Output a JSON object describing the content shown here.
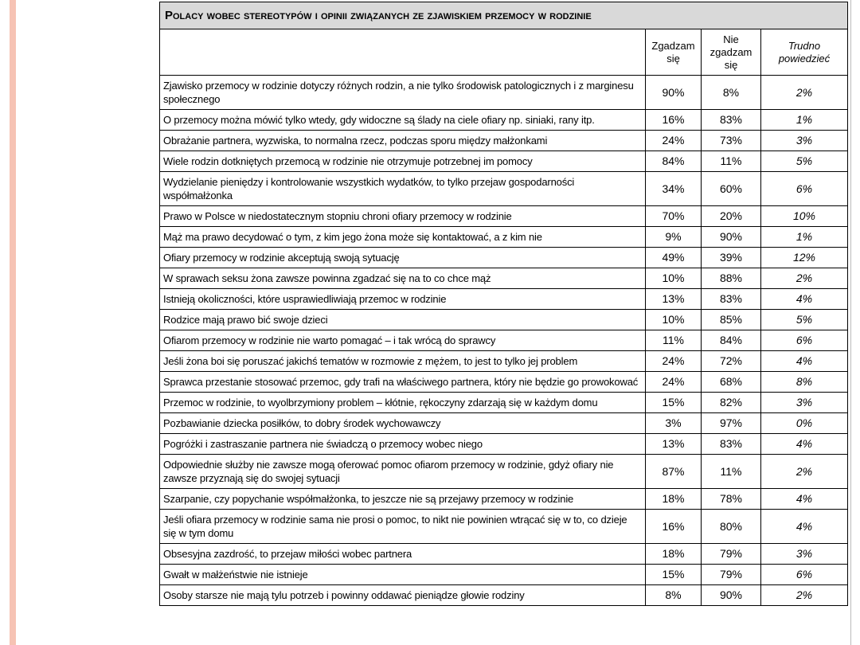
{
  "table": {
    "title": "Polacy wobec stereotypów i opinii związanych ze zjawiskiem przemocy w rodzinie",
    "headers": [
      "Zgadzam się",
      "Nie zgadzam się",
      "Trudno powiedzieć"
    ],
    "rows": [
      [
        "Zjawisko przemocy w rodzinie dotyczy różnych rodzin, a nie tylko środowisk patologicznych i z marginesu społecznego",
        "90%",
        "8%",
        "2%"
      ],
      [
        "O przemocy można mówić tylko wtedy, gdy widoczne są ślady na ciele ofiary np. siniaki, rany itp.",
        "16%",
        "83%",
        "1%"
      ],
      [
        "Obrażanie partnera, wyzwiska, to normalna rzecz, podczas sporu między małżonkami",
        "24%",
        "73%",
        "3%"
      ],
      [
        "Wiele rodzin dotkniętych przemocą w rodzinie nie otrzymuje potrzebnej im pomocy",
        "84%",
        "11%",
        "5%"
      ],
      [
        "Wydzielanie pieniędzy i kontrolowanie wszystkich wydatków, to tylko przejaw gospodarności współmałżonka",
        "34%",
        "60%",
        "6%"
      ],
      [
        "Prawo w Polsce w niedostatecznym stopniu chroni ofiary przemocy w rodzinie",
        "70%",
        "20%",
        "10%"
      ],
      [
        "Mąż ma prawo decydować o tym, z kim jego żona może się kontaktować, a z kim nie",
        "9%",
        "90%",
        "1%"
      ],
      [
        "Ofiary przemocy w rodzinie akceptują swoją sytuację",
        "49%",
        "39%",
        "12%"
      ],
      [
        "W sprawach seksu żona zawsze powinna zgadzać się na to co chce mąż",
        "10%",
        "88%",
        "2%"
      ],
      [
        "Istnieją okoliczności, które usprawiedliwiają przemoc w rodzinie",
        "13%",
        "83%",
        "4%"
      ],
      [
        "Rodzice mają prawo bić swoje dzieci",
        "10%",
        "85%",
        "5%"
      ],
      [
        "Ofiarom przemocy w rodzinie nie warto pomagać – i tak wrócą do sprawcy",
        "11%",
        "84%",
        "6%"
      ],
      [
        "Jeśli żona boi się poruszać jakichś tematów w rozmowie z mężem, to jest to tylko jej problem",
        "24%",
        "72%",
        "4%"
      ],
      [
        "Sprawca przestanie stosować przemoc, gdy trafi na właściwego partnera, który nie będzie go prowokować",
        "24%",
        "68%",
        "8%"
      ],
      [
        "Przemoc w rodzinie, to wyolbrzymiony problem – kłótnie, rękoczyny zdarzają się w każdym domu",
        "15%",
        "82%",
        "3%"
      ],
      [
        "Pozbawianie dziecka posiłków, to dobry środek wychowawczy",
        "3%",
        "97%",
        "0%"
      ],
      [
        "Pogróżki i zastraszanie partnera nie świadczą o przemocy wobec niego",
        "13%",
        "83%",
        "4%"
      ],
      [
        "Odpowiednie służby nie zawsze mogą oferować pomoc ofiarom przemocy w rodzinie, gdyż ofiary nie zawsze przyznają się do swojej sytuacji",
        "87%",
        "11%",
        "2%"
      ],
      [
        "Szarpanie, czy popychanie współmałżonka, to jeszcze nie są przejawy przemocy w rodzinie",
        "18%",
        "78%",
        "4%"
      ],
      [
        "Jeśli ofiara przemocy w rodzinie sama nie prosi o pomoc, to nikt nie powinien wtrącać się w to, co dzieje się w tym domu",
        "16%",
        "80%",
        "4%"
      ],
      [
        "Obsesyjna zazdrość, to przejaw miłości wobec partnera",
        "18%",
        "79%",
        "3%"
      ],
      [
        "Gwałt w małżeństwie nie istnieje",
        "15%",
        "79%",
        "6%"
      ],
      [
        "Osoby starsze nie mają tylu potrzeb i powinny oddawać pieniądze głowie rodziny",
        "8%",
        "90%",
        "2%"
      ]
    ]
  }
}
